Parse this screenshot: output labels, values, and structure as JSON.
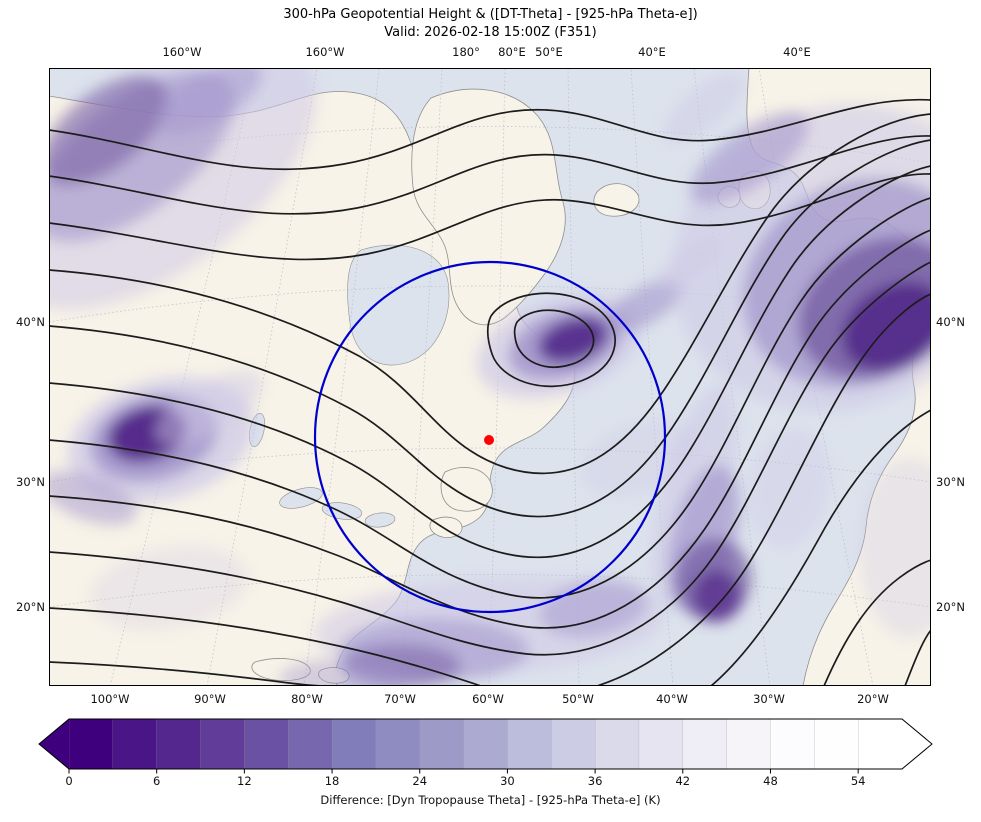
{
  "figure": {
    "title": "300-hPa Geopotential Height & ([DT-Theta] - [925-hPa Theta-e])",
    "subtitle": "Valid: 2026-02-18 15:00Z (F351)"
  },
  "map": {
    "top_ticks": [
      "160°W",
      "160°W",
      "180°",
      "80°E",
      "50°E",
      "40°E",
      "40°E"
    ],
    "bottom_ticks": [
      "100°W",
      "90°W",
      "80°W",
      "70°W",
      "60°W",
      "50°W",
      "40°W",
      "30°W",
      "20°W"
    ],
    "left_ticks": [
      "40°N",
      "30°N",
      "20°N"
    ],
    "right_ticks": [
      "40°N",
      "30°N",
      "20°N"
    ],
    "colors": {
      "ocean": "#dde3ed",
      "land": "#f7f3e8",
      "contour": "#1c1c1c",
      "coastline": "#8e8e8e",
      "range_ring": "#0000cd",
      "marker": "#ff0000"
    }
  },
  "colorbar": {
    "label": "Difference: [Dyn Tropopause Theta] - [925-hPa Theta-e] (K)",
    "ticks": [
      0,
      6,
      12,
      18,
      24,
      30,
      36,
      42,
      48,
      54
    ],
    "level_step": 3,
    "segment_colors": [
      "#3f007d",
      "#4a1587",
      "#54278f",
      "#613c98",
      "#6a51a3",
      "#7767ae",
      "#807dba",
      "#8f8cc2",
      "#9e9ac8",
      "#adaad1",
      "#bcbddc",
      "#cccce4",
      "#dadaeb",
      "#e5e4f0",
      "#efedf5",
      "#f6f4f9",
      "#fcfbfd",
      "#fefeff",
      "#ffffff"
    ],
    "extend_low_color": "#3f007d",
    "extend_high_color": "#ffffff"
  },
  "chart_data": {
    "type": "heatmap",
    "subtype": "filled-contour weather map with line contours",
    "title": "300-hPa Geopotential Height & ([DT-Theta] - [925-hPa Theta-e])",
    "valid_time": "2026-02-18 15:00Z",
    "forecast_hour": "F351",
    "shaded_field": {
      "name": "Difference: [Dyn Tropopause Theta] - [925-hPa Theta-e]",
      "units": "K",
      "scale_ticks": [
        0,
        6,
        12,
        18,
        24,
        30,
        36,
        42,
        48,
        54
      ],
      "level_step": 3,
      "colormap": "purples reversed: dark purple near 0 K, white above ~54 K",
      "extend": "both"
    },
    "line_field": {
      "name": "300-hPa Geopotential Height",
      "style": "solid black contours, unlabeled"
    },
    "axes": {
      "top_longitude_labels": [
        "160°W",
        "160°W",
        "180°",
        "80°E",
        "50°E",
        "40°E",
        "40°E"
      ],
      "bottom_longitude_labels": [
        "100°W",
        "90°W",
        "80°W",
        "70°W",
        "60°W",
        "50°W",
        "40°W",
        "30°W",
        "20°W"
      ],
      "left_latitude_labels": [
        "40°N",
        "30°N",
        "20°N"
      ],
      "right_latitude_labels": [
        "40°N",
        "30°N",
        "20°N"
      ]
    },
    "annotations": [
      {
        "type": "range-ring",
        "shape": "circle",
        "color": "#0000cd",
        "approx_center": "near 60°W, 33°N"
      },
      {
        "type": "station-marker",
        "shape": "dot",
        "color": "#ff0000",
        "approx_location": "near 60°W, 33°N"
      }
    ],
    "notable_features": [
      "deep trough with closed contours over the Labrador Sea region inside the blue range ring",
      "dark purple minima over west-central North America, a comma-shaped minimum near the Labrador Sea, a broad minimum over the northeast Atlantic/Europe, and a subtropical Atlantic band"
    ]
  }
}
